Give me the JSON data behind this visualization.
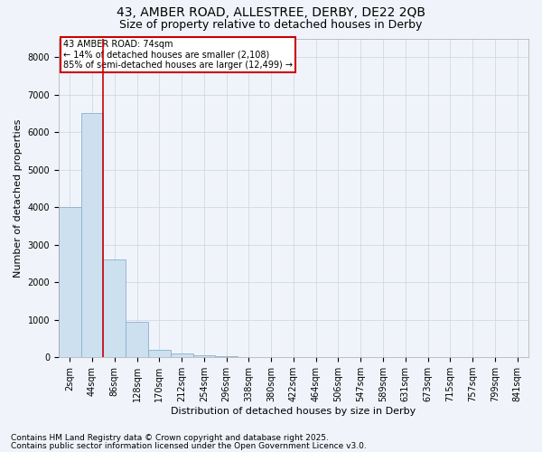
{
  "title_line1": "43, AMBER ROAD, ALLESTREE, DERBY, DE22 2QB",
  "title_line2": "Size of property relative to detached houses in Derby",
  "xlabel": "Distribution of detached houses by size in Derby",
  "ylabel": "Number of detached properties",
  "categories": [
    "2sqm",
    "44sqm",
    "86sqm",
    "128sqm",
    "170sqm",
    "212sqm",
    "254sqm",
    "296sqm",
    "338sqm",
    "380sqm",
    "422sqm",
    "464sqm",
    "506sqm",
    "547sqm",
    "589sqm",
    "631sqm",
    "673sqm",
    "715sqm",
    "757sqm",
    "799sqm",
    "841sqm"
  ],
  "values": [
    4000,
    6500,
    2600,
    950,
    200,
    100,
    50,
    30,
    0,
    0,
    0,
    0,
    0,
    0,
    0,
    0,
    0,
    0,
    0,
    0,
    0
  ],
  "bar_color": "#cce0f0",
  "bar_edgecolor": "#8ab0cc",
  "vline_color": "#cc0000",
  "vline_x": 1.5,
  "ylim": [
    0,
    8500
  ],
  "yticks": [
    0,
    1000,
    2000,
    3000,
    4000,
    5000,
    6000,
    7000,
    8000
  ],
  "annotation_text": "43 AMBER ROAD: 74sqm\n← 14% of detached houses are smaller (2,108)\n85% of semi-detached houses are larger (12,499) →",
  "annotation_box_facecolor": "#ffffff",
  "annotation_box_edgecolor": "#cc0000",
  "footnote1": "Contains HM Land Registry data © Crown copyright and database right 2025.",
  "footnote2": "Contains public sector information licensed under the Open Government Licence v3.0.",
  "bg_color": "#f0f4fa",
  "grid_color": "#c8d4e0",
  "title_fontsize": 10,
  "subtitle_fontsize": 9,
  "axis_label_fontsize": 8,
  "tick_fontsize": 7,
  "annotation_fontsize": 7,
  "footnote_fontsize": 6.5
}
